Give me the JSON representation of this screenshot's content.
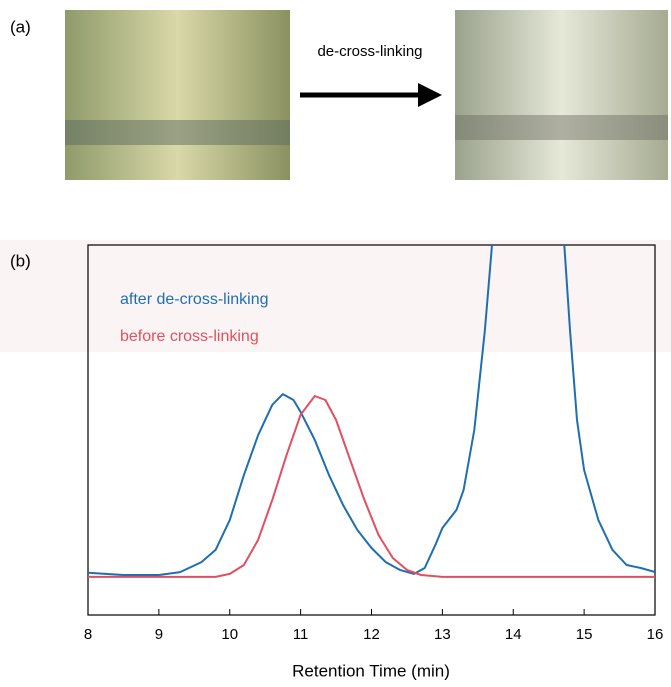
{
  "panel_labels": [
    "(a)",
    "(b)"
  ],
  "arrow_label": "de-cross-linking",
  "chart_data": {
    "type": "line",
    "xlabel": "Retention Time (min)",
    "xlim": [
      8,
      16
    ],
    "xticks": [
      8,
      9,
      10,
      11,
      12,
      13,
      14,
      15,
      16
    ],
    "ylim": [
      0,
      1
    ],
    "series": [
      {
        "name": "after de-cross-linking",
        "color": "#1f6fb0",
        "x": [
          8.0,
          8.5,
          9.0,
          9.3,
          9.6,
          9.8,
          10.0,
          10.2,
          10.4,
          10.6,
          10.75,
          10.9,
          11.0,
          11.2,
          11.4,
          11.6,
          11.8,
          12.0,
          12.2,
          12.4,
          12.6,
          12.75,
          12.9,
          13.0,
          13.2,
          13.3,
          13.45,
          13.6,
          13.7,
          14.0,
          14.4,
          14.72,
          14.8,
          14.9,
          15.0,
          15.2,
          15.4,
          15.6,
          15.8,
          16.0
        ],
        "values": [
          0.114,
          0.108,
          0.108,
          0.116,
          0.143,
          0.176,
          0.257,
          0.378,
          0.486,
          0.568,
          0.597,
          0.581,
          0.549,
          0.473,
          0.378,
          0.297,
          0.23,
          0.181,
          0.143,
          0.122,
          0.111,
          0.127,
          0.189,
          0.235,
          0.284,
          0.338,
          0.5,
          0.77,
          1.0,
          null,
          null,
          1.0,
          0.77,
          0.527,
          0.392,
          0.257,
          0.176,
          0.135,
          0.127,
          0.116
        ]
      },
      {
        "name": "before cross-linking",
        "color": "#e05060",
        "x": [
          8.0,
          9.0,
          9.8,
          10.0,
          10.2,
          10.4,
          10.6,
          10.8,
          11.0,
          11.2,
          11.35,
          11.5,
          11.7,
          11.9,
          12.1,
          12.3,
          12.5,
          12.7,
          13.0,
          14.0,
          15.0,
          16.0
        ],
        "values": [
          0.103,
          0.103,
          0.103,
          0.111,
          0.135,
          0.203,
          0.311,
          0.432,
          0.541,
          0.592,
          0.581,
          0.527,
          0.419,
          0.311,
          0.216,
          0.154,
          0.122,
          0.108,
          0.103,
          0.103,
          0.103,
          0.103
        ]
      }
    ]
  }
}
